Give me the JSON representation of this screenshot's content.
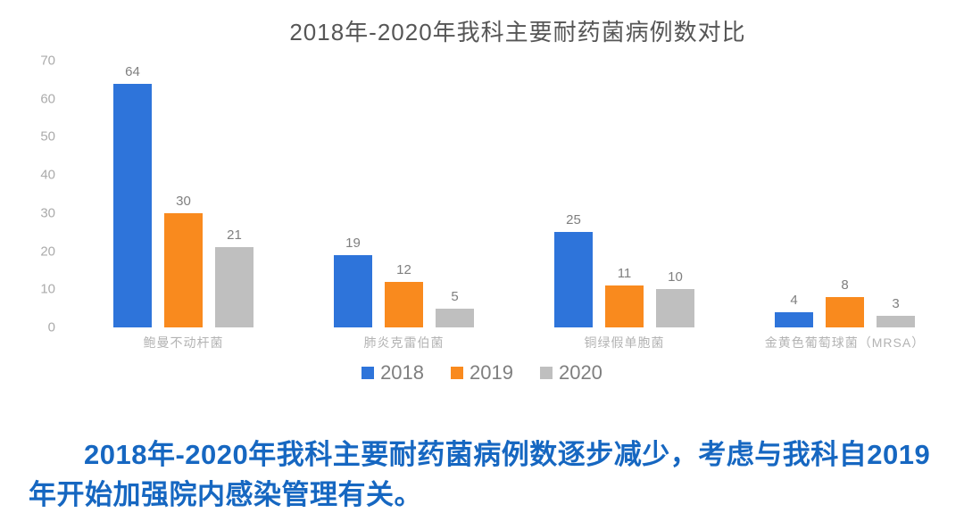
{
  "chart_data": {
    "type": "bar",
    "title": "2018年-2020年我科主要耐药菌病例数对比",
    "categories": [
      "鲍曼不动杆菌",
      "肺炎克雷伯菌",
      "铜绿假单胞菌",
      "金黄色葡萄球菌（MRSA）"
    ],
    "series": [
      {
        "name": "2018",
        "color": "#2e74da",
        "values": [
          64,
          19,
          25,
          4
        ]
      },
      {
        "name": "2019",
        "color": "#f98a1e",
        "values": [
          30,
          12,
          11,
          8
        ]
      },
      {
        "name": "2020",
        "color": "#bfbfbf",
        "values": [
          21,
          5,
          10,
          3
        ]
      }
    ],
    "xlabel": "",
    "ylabel": "",
    "ylim": [
      0,
      70
    ],
    "ytick_step": 10,
    "grid": false,
    "data_labels": true,
    "legend_position": "bottom"
  },
  "caption": "2018年-2020年我科主要耐药菌病例数逐步减少，考虑与我科自2019年开始加强院内感染管理有关。",
  "colors": {
    "series_2018": "#2e74da",
    "series_2019": "#f98a1e",
    "series_2020": "#bfbfbf",
    "caption_text": "#1667c1",
    "title_text": "#565656",
    "axis_text": "#ababab"
  }
}
